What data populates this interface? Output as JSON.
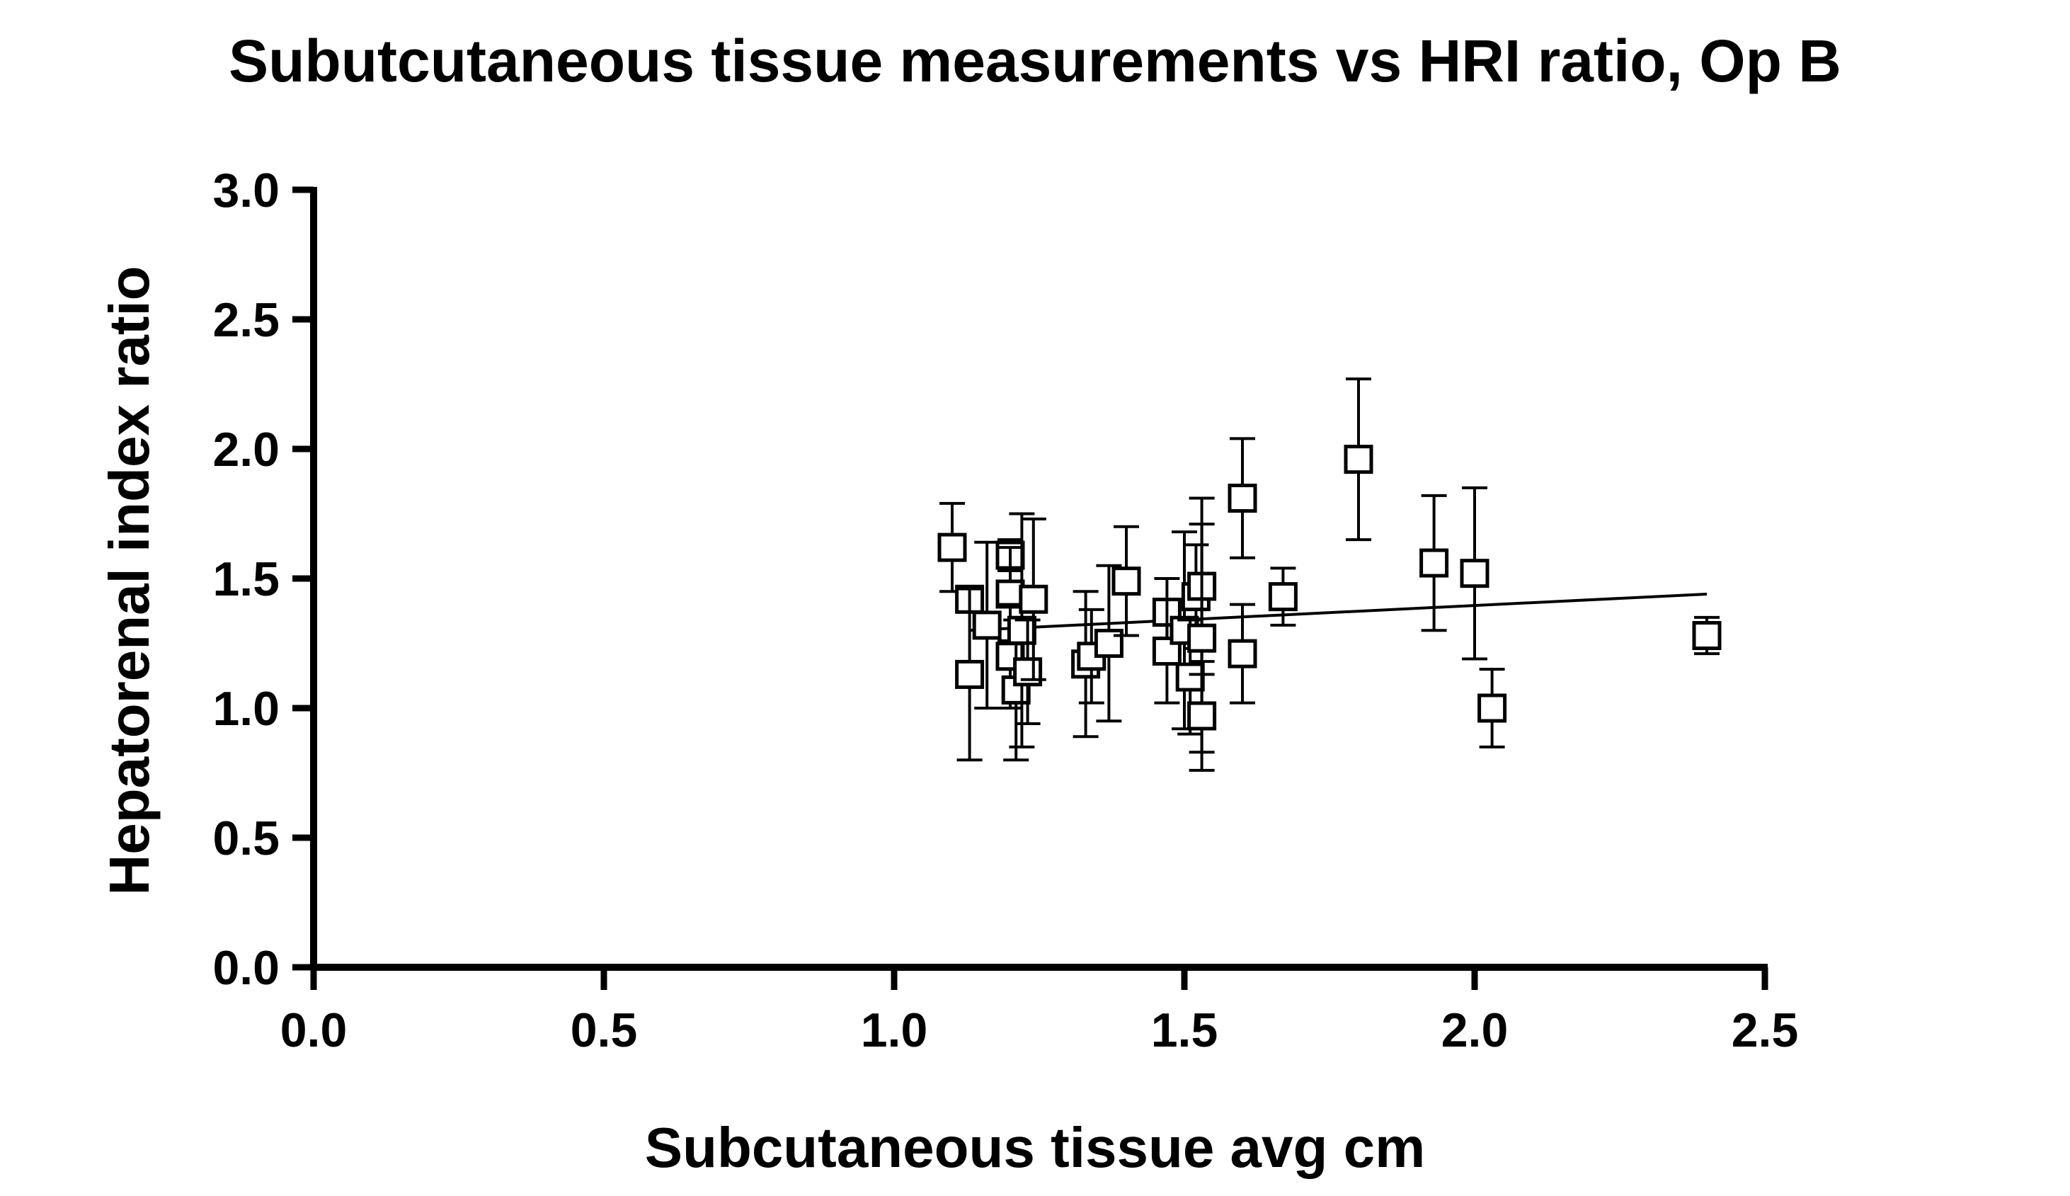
{
  "chart_data": {
    "type": "scatter",
    "title": "Subutcutaneous tissue measurements vs HRI ratio, Op B",
    "xlabel": "Subcutaneous tissue avg cm",
    "ylabel": "Hepatorenal index ratio",
    "xlim": [
      0.0,
      2.5
    ],
    "ylim": [
      0.0,
      3.0
    ],
    "xticks": [
      "0.0",
      "0.5",
      "1.0",
      "1.5",
      "2.0",
      "2.5"
    ],
    "yticks": [
      "0.0",
      "0.5",
      "1.0",
      "1.5",
      "2.0",
      "2.5",
      "3.0"
    ],
    "grid": false,
    "marker": "open-square",
    "color": "#000000",
    "points": [
      {
        "x": 1.1,
        "y": 1.62,
        "err": 0.17
      },
      {
        "x": 1.13,
        "y": 1.42,
        "err": 0.05
      },
      {
        "x": 1.13,
        "y": 1.13,
        "err": 0.33
      },
      {
        "x": 1.16,
        "y": 1.32,
        "err": 0.32
      },
      {
        "x": 1.2,
        "y": 1.59,
        "err": 0.06
      },
      {
        "x": 1.2,
        "y": 1.44,
        "err": 0.18
      },
      {
        "x": 1.2,
        "y": 1.2,
        "err": 0.2
      },
      {
        "x": 1.21,
        "y": 1.07,
        "err": 0.27
      },
      {
        "x": 1.22,
        "y": 1.3,
        "err": 0.45
      },
      {
        "x": 1.23,
        "y": 1.14,
        "err": 0.2
      },
      {
        "x": 1.24,
        "y": 1.42,
        "err": 0.31
      },
      {
        "x": 1.33,
        "y": 1.17,
        "err": 0.28
      },
      {
        "x": 1.34,
        "y": 1.2,
        "err": 0.18
      },
      {
        "x": 1.37,
        "y": 1.25,
        "err": 0.3
      },
      {
        "x": 1.4,
        "y": 1.49,
        "err": 0.21
      },
      {
        "x": 1.47,
        "y": 1.37,
        "err": 0.13
      },
      {
        "x": 1.47,
        "y": 1.22,
        "err": 0.2
      },
      {
        "x": 1.5,
        "y": 1.3,
        "err": 0.38
      },
      {
        "x": 1.51,
        "y": 1.12,
        "err": 0.22
      },
      {
        "x": 1.52,
        "y": 1.43,
        "err": 0.2
      },
      {
        "x": 1.53,
        "y": 1.47,
        "err": 0.34
      },
      {
        "x": 1.53,
        "y": 1.27,
        "err": 0.44
      },
      {
        "x": 1.53,
        "y": 0.97,
        "err": 0.21
      },
      {
        "x": 1.6,
        "y": 1.81,
        "err": 0.23
      },
      {
        "x": 1.6,
        "y": 1.21,
        "err": 0.19
      },
      {
        "x": 1.67,
        "y": 1.43,
        "err": 0.11
      },
      {
        "x": 1.8,
        "y": 1.96,
        "err": 0.31
      },
      {
        "x": 1.93,
        "y": 1.56,
        "err": 0.26
      },
      {
        "x": 2.0,
        "y": 1.52,
        "err": 0.33
      },
      {
        "x": 2.03,
        "y": 1.0,
        "err": 0.15
      },
      {
        "x": 2.4,
        "y": 1.28,
        "err": 0.07
      }
    ],
    "trendline": {
      "x": [
        1.13,
        2.4
      ],
      "y": [
        1.3,
        1.44
      ]
    }
  }
}
